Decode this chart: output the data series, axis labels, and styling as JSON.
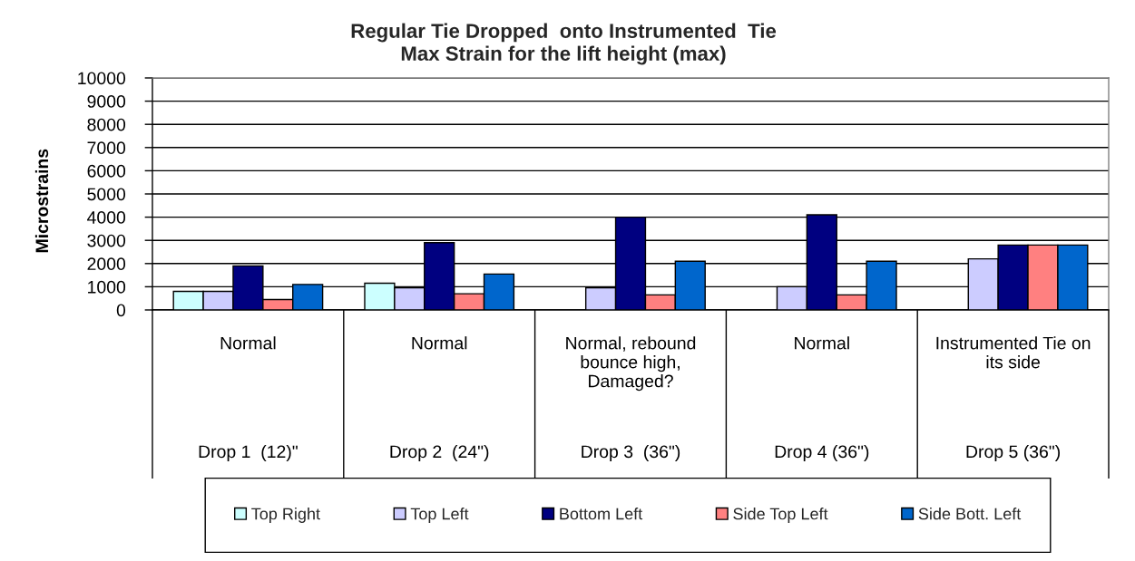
{
  "chart_data": {
    "type": "bar",
    "title": "Regular Tie Dropped  onto Instrumented  Tie",
    "subtitle": "Max Strain for the lift height (max)",
    "ylabel": "Microstrains",
    "categories": [
      "Normal",
      "Normal",
      "Normal, rebound\nbounce high,\nDamaged?",
      "Normal",
      "Instrumented Tie on\nits side"
    ],
    "annotations": [
      "Drop 1  (12)\"",
      "Drop 2  (24\")",
      "Drop 3  (36\")",
      "Drop 4 (36\")",
      "Drop 5 (36\")"
    ],
    "series": [
      {
        "name": "Top Right",
        "color": "#ccffff",
        "values": [
          800,
          1150,
          null,
          null,
          null
        ]
      },
      {
        "name": "Top Left",
        "color": "#ccccff",
        "values": [
          800,
          950,
          950,
          1000,
          2200
        ]
      },
      {
        "name": "Bottom Left",
        "color": "#000080",
        "values": [
          1900,
          2900,
          4000,
          4100,
          2800
        ]
      },
      {
        "name": "Side Top Left",
        "color": "#ff8080",
        "values": [
          450,
          700,
          650,
          650,
          2800
        ]
      },
      {
        "name": "Side Bott. Left",
        "color": "#0066cc",
        "values": [
          1100,
          1550,
          2100,
          2100,
          2800
        ]
      }
    ],
    "ylim": [
      0,
      10000
    ],
    "yticks": [
      0,
      1000,
      2000,
      3000,
      4000,
      5000,
      6000,
      7000,
      8000,
      9000,
      10000
    ],
    "grid": "y",
    "legend": "bottom"
  }
}
